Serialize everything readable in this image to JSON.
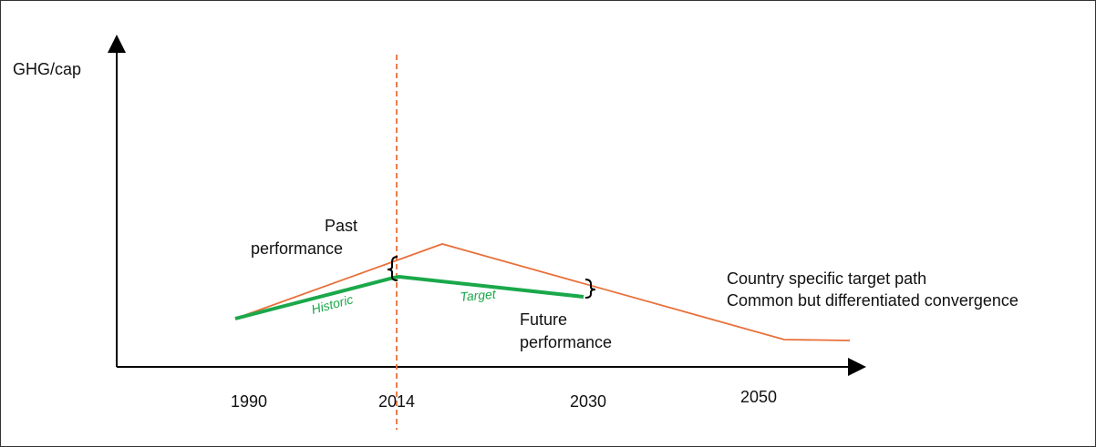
{
  "y_axis_label": "GHG/cap",
  "x_labels": [
    "1990",
    "2014",
    "2030",
    "2050"
  ],
  "annotations": {
    "past_performance": [
      "Past",
      "performance"
    ],
    "historic": "Historic",
    "target": "Target",
    "future_performance": [
      "Future",
      "performance"
    ],
    "path_notes": [
      "Country specific target path",
      "Common but differentiated convergence"
    ]
  }
}
